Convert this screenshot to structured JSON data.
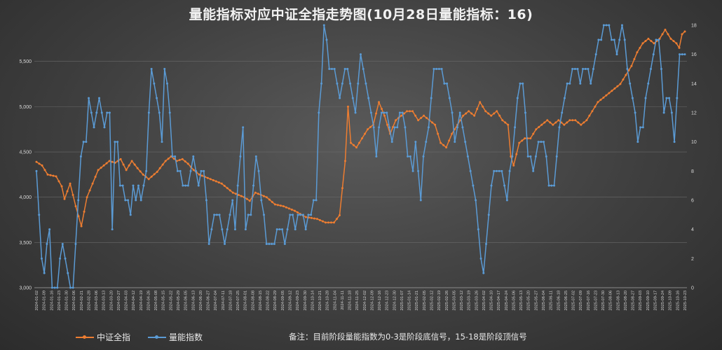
{
  "title": "量能指标对应中证全指走势图(10月28日量能指标：16)",
  "note": "备注：目前阶段量能指数为0-3是阶段底信号，15-18是阶段顶信号",
  "chart_data": {
    "type": "line",
    "title": "量能指标对应中证全指走势图(10月28日量能指标：16)",
    "xlabel": "",
    "ylabel": "",
    "ylim": [
      3000,
      5900
    ],
    "y2lim": [
      0,
      18
    ],
    "yticks": [
      3000,
      3500,
      4000,
      4500,
      5000,
      5500
    ],
    "ytick_labels": [
      "3,000",
      "3,500",
      "4,000",
      "4,500",
      "5,000",
      "5,500"
    ],
    "y2ticks": [
      0,
      2,
      4,
      6,
      8,
      10,
      12,
      14,
      16,
      18
    ],
    "y2tick_labels": [
      "0",
      "2",
      "4",
      "6",
      "8",
      "10",
      "12",
      "14",
      "16",
      "18"
    ],
    "grid": true,
    "legend_position": "bottom-left",
    "x_tick_labels": [
      "2024-01-02",
      "2024-01-09",
      "2024-01-16",
      "2024-01-23",
      "2024-01-30",
      "2024-02-06",
      "2024-02-21",
      "2024-02-28",
      "2024-03-06",
      "2024-03-13",
      "2024-03-20",
      "2024-03-27",
      "2024-04-03",
      "2024-04-12",
      "2024-04-19",
      "2024-04-26",
      "2024-05-08",
      "2024-05-15",
      "2024-05-22",
      "2024-05-29",
      "2024-06-05",
      "2024-06-13",
      "2024-06-20",
      "2024-06-27",
      "2024-07-04",
      "2024-07-11",
      "2024-07-18",
      "2024-07-25",
      "2024-08-01",
      "2024-08-08",
      "2024-08-15",
      "2024-08-22",
      "2024-08-29",
      "2024-09-05",
      "2024-09-12",
      "2024-09-23",
      "2024-09-30",
      "2024-10-14",
      "2024-10-21",
      "2024-10-28",
      "2024-11-04",
      "2024-11-11",
      "2024-11-18",
      "2024-11-25",
      "2024-12-02",
      "2024-12-09",
      "2024-12-16",
      "2024-12-23",
      "2024-12-30",
      "2025-01-07",
      "2025-01-14",
      "2025-01-21",
      "2025-02-05",
      "2025-02-12",
      "2025-02-19",
      "2025-02-26",
      "2025-03-05",
      "2025-03-12",
      "2025-03-19",
      "2025-03-26",
      "2025-04-02",
      "2025-04-10",
      "2025-04-17",
      "2025-04-24",
      "2025-05-06",
      "2025-05-13",
      "2025-05-20",
      "2025-05-27",
      "2025-06-04",
      "2025-06-11",
      "2025-06-18",
      "2025-06-25",
      "2025-07-02",
      "2025-07-09",
      "2025-07-16",
      "2025-07-23",
      "2025-07-30",
      "2025-08-06",
      "2025-08-13",
      "2025-08-20",
      "2025-08-27",
      "2025-09-03",
      "2025-09-10",
      "2025-09-17",
      "2025-09-24",
      "2025-10-09",
      "2025-10-16",
      "2025-10-23"
    ],
    "series": [
      {
        "name": "中证全指",
        "axis": "left",
        "color": "#ed7d31",
        "anchors": [
          [
            0,
            4390
          ],
          [
            2,
            4350
          ],
          [
            4,
            4250
          ],
          [
            7,
            4230
          ],
          [
            9,
            4120
          ],
          [
            10,
            3980
          ],
          [
            12,
            4150
          ],
          [
            14,
            3900
          ],
          [
            16,
            3680
          ],
          [
            18,
            4000
          ],
          [
            20,
            4150
          ],
          [
            22,
            4300
          ],
          [
            24,
            4350
          ],
          [
            26,
            4400
          ],
          [
            28,
            4380
          ],
          [
            30,
            4420
          ],
          [
            32,
            4300
          ],
          [
            34,
            4400
          ],
          [
            36,
            4320
          ],
          [
            38,
            4250
          ],
          [
            40,
            4200
          ],
          [
            43,
            4280
          ],
          [
            46,
            4400
          ],
          [
            48,
            4450
          ],
          [
            50,
            4400
          ],
          [
            52,
            4420
          ],
          [
            54,
            4370
          ],
          [
            56,
            4300
          ],
          [
            58,
            4250
          ],
          [
            62,
            4200
          ],
          [
            66,
            4150
          ],
          [
            70,
            4050
          ],
          [
            74,
            4000
          ],
          [
            76,
            3960
          ],
          [
            78,
            4050
          ],
          [
            82,
            4000
          ],
          [
            85,
            3920
          ],
          [
            88,
            3900
          ],
          [
            92,
            3850
          ],
          [
            96,
            3780
          ],
          [
            100,
            3760
          ],
          [
            103,
            3720
          ],
          [
            106,
            3720
          ],
          [
            108,
            3800
          ],
          [
            110,
            4400
          ],
          [
            111,
            5000
          ],
          [
            112,
            4600
          ],
          [
            114,
            4550
          ],
          [
            116,
            4650
          ],
          [
            118,
            4750
          ],
          [
            120,
            4800
          ],
          [
            122,
            5050
          ],
          [
            124,
            4900
          ],
          [
            126,
            4700
          ],
          [
            128,
            4850
          ],
          [
            130,
            4900
          ],
          [
            132,
            4950
          ],
          [
            134,
            4950
          ],
          [
            136,
            4850
          ],
          [
            138,
            4900
          ],
          [
            140,
            4850
          ],
          [
            142,
            4800
          ],
          [
            144,
            4600
          ],
          [
            146,
            4550
          ],
          [
            148,
            4700
          ],
          [
            150,
            4800
          ],
          [
            152,
            4900
          ],
          [
            154,
            4950
          ],
          [
            156,
            4900
          ],
          [
            158,
            5050
          ],
          [
            160,
            4950
          ],
          [
            162,
            4900
          ],
          [
            164,
            4950
          ],
          [
            166,
            4850
          ],
          [
            168,
            4800
          ],
          [
            169,
            4450
          ],
          [
            170,
            4350
          ],
          [
            172,
            4600
          ],
          [
            174,
            4650
          ],
          [
            176,
            4650
          ],
          [
            178,
            4750
          ],
          [
            180,
            4800
          ],
          [
            182,
            4850
          ],
          [
            184,
            4800
          ],
          [
            186,
            4850
          ],
          [
            188,
            4800
          ],
          [
            190,
            4850
          ],
          [
            192,
            4850
          ],
          [
            194,
            4800
          ],
          [
            196,
            4850
          ],
          [
            198,
            4950
          ],
          [
            200,
            5050
          ],
          [
            202,
            5100
          ],
          [
            204,
            5150
          ],
          [
            206,
            5200
          ],
          [
            208,
            5250
          ],
          [
            210,
            5350
          ],
          [
            212,
            5450
          ],
          [
            214,
            5600
          ],
          [
            216,
            5700
          ],
          [
            218,
            5750
          ],
          [
            220,
            5700
          ],
          [
            222,
            5750
          ],
          [
            224,
            5850
          ],
          [
            226,
            5750
          ],
          [
            228,
            5700
          ],
          [
            229,
            5650
          ],
          [
            230,
            5800
          ],
          [
            231,
            5830
          ]
        ]
      },
      {
        "name": "量能指数",
        "axis": "right",
        "color": "#5b9bd5",
        "anchors": [
          [
            0,
            8
          ],
          [
            1,
            5
          ],
          [
            2,
            2
          ],
          [
            3,
            1
          ],
          [
            5,
            4
          ],
          [
            6,
            0
          ],
          [
            8,
            0
          ],
          [
            9,
            2
          ],
          [
            10,
            3
          ],
          [
            11,
            2
          ],
          [
            13,
            0
          ],
          [
            14,
            0
          ],
          [
            15,
            3
          ],
          [
            17,
            9
          ],
          [
            19,
            10
          ],
          [
            20,
            13
          ],
          [
            22,
            11
          ],
          [
            24,
            13
          ],
          [
            26,
            11
          ],
          [
            28,
            12
          ],
          [
            29,
            4
          ],
          [
            30,
            10
          ],
          [
            31,
            10
          ],
          [
            32,
            7
          ],
          [
            34,
            6
          ],
          [
            36,
            5
          ],
          [
            37,
            7
          ],
          [
            38,
            6
          ],
          [
            39,
            7
          ],
          [
            40,
            6
          ],
          [
            42,
            8
          ],
          [
            44,
            15
          ],
          [
            46,
            13
          ],
          [
            48,
            10
          ],
          [
            49,
            15
          ],
          [
            50,
            14
          ],
          [
            52,
            9
          ],
          [
            54,
            8
          ],
          [
            56,
            7
          ],
          [
            58,
            7
          ],
          [
            60,
            9
          ],
          [
            62,
            7
          ],
          [
            64,
            8
          ],
          [
            66,
            3
          ],
          [
            68,
            5
          ],
          [
            70,
            5
          ],
          [
            72,
            3
          ],
          [
            74,
            5
          ],
          [
            75,
            6
          ],
          [
            76,
            4
          ],
          [
            78,
            9
          ],
          [
            79,
            11
          ],
          [
            80,
            4
          ],
          [
            82,
            5
          ],
          [
            84,
            9
          ],
          [
            86,
            6
          ],
          [
            88,
            3
          ],
          [
            89,
            3
          ],
          [
            91,
            3
          ],
          [
            93,
            4
          ],
          [
            95,
            3
          ],
          [
            97,
            5
          ],
          [
            99,
            4
          ],
          [
            101,
            5
          ],
          [
            103,
            4
          ],
          [
            105,
            5
          ],
          [
            107,
            6
          ],
          [
            108,
            12
          ],
          [
            109,
            14
          ],
          [
            110,
            18
          ],
          [
            112,
            15
          ],
          [
            114,
            15
          ],
          [
            116,
            13
          ],
          [
            118,
            15
          ],
          [
            120,
            14
          ],
          [
            122,
            12
          ],
          [
            124,
            16
          ],
          [
            126,
            14
          ],
          [
            128,
            12
          ],
          [
            130,
            9
          ],
          [
            132,
            12
          ],
          [
            134,
            12
          ],
          [
            136,
            10
          ],
          [
            138,
            11
          ],
          [
            140,
            12
          ],
          [
            142,
            9
          ],
          [
            144,
            8
          ],
          [
            145,
            10
          ],
          [
            146,
            8
          ],
          [
            147,
            6
          ],
          [
            148,
            9
          ],
          [
            150,
            11
          ],
          [
            152,
            15
          ],
          [
            154,
            15
          ],
          [
            156,
            14
          ],
          [
            158,
            13
          ],
          [
            160,
            10
          ],
          [
            162,
            12
          ],
          [
            164,
            10
          ],
          [
            166,
            8
          ],
          [
            168,
            6
          ],
          [
            169,
            4
          ],
          [
            170,
            2
          ],
          [
            171,
            1
          ],
          [
            172,
            3
          ],
          [
            174,
            7
          ],
          [
            176,
            8
          ],
          [
            178,
            8
          ],
          [
            180,
            6
          ],
          [
            182,
            9
          ],
          [
            184,
            13
          ],
          [
            186,
            14
          ],
          [
            188,
            9
          ],
          [
            190,
            8
          ],
          [
            192,
            10
          ],
          [
            194,
            10
          ],
          [
            196,
            7
          ],
          [
            198,
            7
          ],
          [
            200,
            11
          ],
          [
            202,
            13
          ],
          [
            204,
            14
          ],
          [
            206,
            15
          ],
          [
            208,
            14
          ],
          [
            210,
            15
          ],
          [
            212,
            14
          ],
          [
            214,
            16
          ],
          [
            216,
            17
          ],
          [
            218,
            18
          ],
          [
            220,
            17
          ],
          [
            222,
            16
          ],
          [
            224,
            18
          ],
          [
            226,
            15
          ],
          [
            228,
            13
          ],
          [
            230,
            10
          ],
          [
            232,
            11
          ],
          [
            234,
            14
          ],
          [
            236,
            16
          ],
          [
            238,
            17
          ],
          [
            240,
            12
          ],
          [
            242,
            13
          ],
          [
            244,
            10
          ],
          [
            246,
            16
          ],
          [
            248,
            16
          ]
        ]
      }
    ]
  }
}
